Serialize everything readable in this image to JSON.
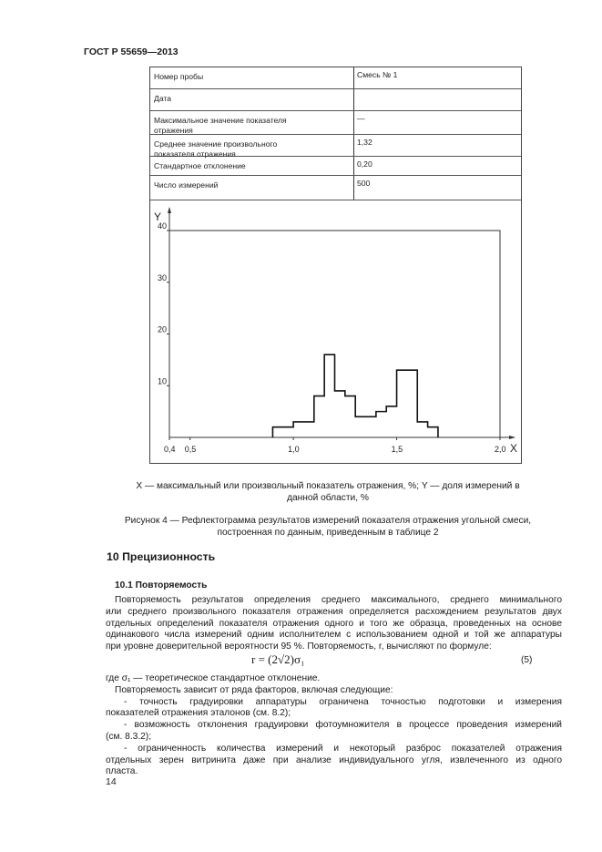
{
  "header": {
    "doc_id": "ГОСТ Р 55659—2013"
  },
  "table": {
    "rows": [
      {
        "label": [
          "Номер пробы"
        ],
        "value": "Смесь № 1"
      },
      {
        "label": [
          "Дата"
        ],
        "value": ""
      },
      {
        "label": [
          "Максимальное значение показателя",
          "отражения"
        ],
        "value": "—"
      },
      {
        "label": [
          "Среднее значение произвольного",
          "показателя отражения"
        ],
        "value": "1,32"
      },
      {
        "label": [
          "Стандартное отклонение"
        ],
        "value": "0,20"
      },
      {
        "label": [
          "Число измерений"
        ],
        "value": "500"
      }
    ]
  },
  "chart_data": {
    "type": "histogram",
    "xlabel": "X",
    "ylabel": "Y",
    "xlim": [
      0.4,
      2.0
    ],
    "ylim": [
      0,
      40
    ],
    "x_ticks": [
      "0,4",
      "0,5",
      "1,0",
      "1,5",
      "2,0"
    ],
    "y_ticks": [
      "10",
      "20",
      "30",
      "40"
    ],
    "bins": [
      {
        "from": 0.9,
        "to": 1.0,
        "value": 2
      },
      {
        "from": 1.0,
        "to": 1.1,
        "value": 3
      },
      {
        "from": 1.1,
        "to": 1.15,
        "value": 8
      },
      {
        "from": 1.15,
        "to": 1.2,
        "value": 16
      },
      {
        "from": 1.2,
        "to": 1.25,
        "value": 9
      },
      {
        "from": 1.25,
        "to": 1.3,
        "value": 8
      },
      {
        "from": 1.3,
        "to": 1.4,
        "value": 4
      },
      {
        "from": 1.4,
        "to": 1.45,
        "value": 5
      },
      {
        "from": 1.45,
        "to": 1.5,
        "value": 6
      },
      {
        "from": 1.5,
        "to": 1.6,
        "value": 13
      },
      {
        "from": 1.6,
        "to": 1.65,
        "value": 3
      },
      {
        "from": 1.65,
        "to": 1.7,
        "value": 2
      }
    ],
    "grid": false
  },
  "caption": {
    "legend": [
      "X — максимальный или произвольный показатель отражения, %; Y — доля измерений в",
      "данной области, %"
    ],
    "figure": [
      "Рисунок 4 — Рефлектограмма результатов измерений показателя отражения угольной смеси,",
      "построенная по данным, приведенным в таблице 2"
    ]
  },
  "section": {
    "title": "10  Прецизионность",
    "subtitle": "10.1 Повторяемость",
    "para1": [
      "Повторяемость результатов определения среднего максимального, среднего минимального",
      "или среднего произвольного показателя отражения определяется расхождением результатов двух",
      "отдельных определений показателя отражения одного и того же образца, проведенных на основе",
      "одинакового числа измерений одним исполнителем с использованием одной и той же аппаратуры",
      "при уровне доверительной вероятности 95 %. Повторяемость, r, вычисляют по формуле:"
    ],
    "formula": "r = (2√2)σ₁",
    "formula_number": "(5)",
    "where": "где    σ₁ — теоретическое стандартное отклонение.",
    "factors_intro": "Повторяемость зависит от ряда факторов, включая следующие:",
    "factors": [
      [
        "- точность градуировки аппаратуры ограничена точностью подготовки и измерения",
        "показателей отражения эталонов (см. 8.2);"
      ],
      [
        "- возможность отклонения градуировки фотоумножителя в процессе проведения измерений",
        "(см. 8.3.2);"
      ],
      [
        "- ограниченность количества измерений и некоторый разброс показателей отражения",
        "отдельных зерен витринита даже при анализе индивидуального угля, извлеченного из одного",
        "пласта."
      ]
    ]
  },
  "footer": {
    "page_number": "14"
  }
}
